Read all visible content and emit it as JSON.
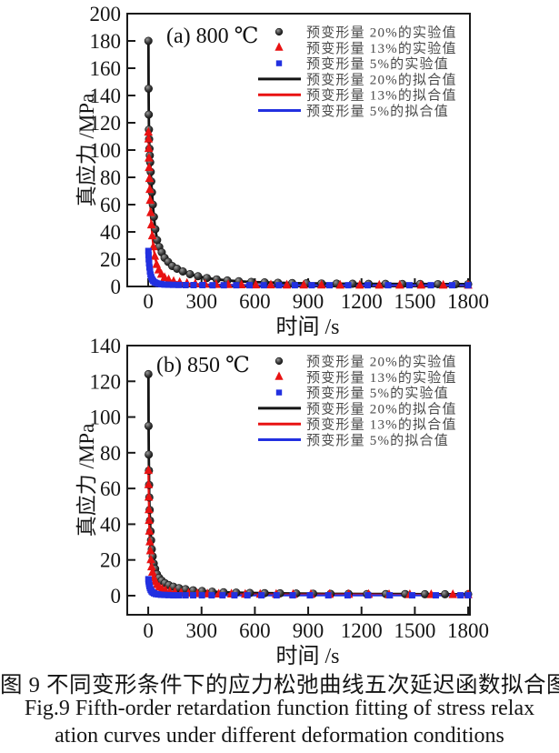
{
  "figure": {
    "caption_cn": "图 9  不同变形条件下的应力松弛曲线五次延迟函数拟合图",
    "caption_en_line1": "Fig.9  Fifth-order retardation function fitting of stress relax",
    "caption_en_line2": "ation curves under different deformation conditions"
  },
  "colors": {
    "axis": "#1a1a1a",
    "black_series": "#141414",
    "red_series": "#e81212",
    "blue_series": "#2230e0",
    "gray_marker": "#3a3a3a",
    "legend_text": "#4a4a4a"
  },
  "chart_data": [
    {
      "type": "line",
      "title": "(a) 800 ℃",
      "xlabel": "时间 /s",
      "ylabel": "真应力 /MPa",
      "xlim": [
        -118,
        1810
      ],
      "ylim": [
        0,
        200
      ],
      "xticks": [
        0,
        300,
        600,
        900,
        1200,
        1500,
        1800
      ],
      "yticks": [
        0,
        20,
        40,
        60,
        80,
        100,
        120,
        140,
        160,
        180,
        200
      ],
      "grid": false,
      "legend_position": "upper-right-inside",
      "series": [
        {
          "name": "预变形量 20%的实验值",
          "kind": "scatter",
          "marker": "circle",
          "color": "#2f2f2f",
          "points": [
            [
              1,
              180
            ],
            [
              2,
              145
            ],
            [
              3,
              126
            ],
            [
              4,
              115
            ],
            [
              5,
              108
            ],
            [
              7,
              101
            ],
            [
              9,
              96
            ],
            [
              11,
              91
            ],
            [
              14,
              84
            ],
            [
              17,
              77
            ],
            [
              21,
              69
            ],
            [
              26,
              60
            ],
            [
              32,
              51
            ],
            [
              40,
              42
            ],
            [
              50,
              34
            ],
            [
              62,
              29
            ],
            [
              76,
              25
            ],
            [
              92,
              21
            ],
            [
              112,
              18
            ],
            [
              135,
              15
            ],
            [
              162,
              13
            ],
            [
              195,
              11
            ],
            [
              235,
              9
            ],
            [
              280,
              7.5
            ],
            [
              330,
              6.2
            ],
            [
              385,
              5.2
            ],
            [
              445,
              4.4
            ],
            [
              510,
              3.8
            ],
            [
              580,
              3.3
            ],
            [
              655,
              3
            ],
            [
              730,
              2.7
            ],
            [
              810,
              2.5
            ],
            [
              890,
              2.3
            ],
            [
              975,
              2.2
            ],
            [
              1060,
              2.1
            ],
            [
              1150,
              2
            ],
            [
              1240,
              1.9
            ],
            [
              1335,
              1.9
            ],
            [
              1430,
              1.8
            ],
            [
              1530,
              1.8
            ],
            [
              1630,
              1.7
            ],
            [
              1730,
              1.7
            ],
            [
              1800,
              1.7
            ]
          ]
        },
        {
          "name": "预变形量 13%的实验值",
          "kind": "scatter",
          "marker": "triangle",
          "color": "#e81212",
          "points": [
            [
              1,
              113
            ],
            [
              2,
              108
            ],
            [
              3,
              101
            ],
            [
              4,
              94
            ],
            [
              5,
              87
            ],
            [
              7,
              79
            ],
            [
              9,
              71
            ],
            [
              11,
              63
            ],
            [
              14,
              54
            ],
            [
              18,
              45
            ],
            [
              23,
              37
            ],
            [
              29,
              29
            ],
            [
              37,
              22
            ],
            [
              47,
              16
            ],
            [
              59,
              12
            ],
            [
              74,
              8.8
            ],
            [
              92,
              6.4
            ],
            [
              115,
              4.8
            ],
            [
              143,
              3.6
            ],
            [
              177,
              2.8
            ],
            [
              218,
              2.2
            ],
            [
              265,
              1.8
            ],
            [
              320,
              1.5
            ],
            [
              382,
              1.3
            ],
            [
              450,
              1.2
            ],
            [
              525,
              1.1
            ],
            [
              605,
              1
            ],
            [
              690,
              1
            ],
            [
              780,
              0.9
            ],
            [
              875,
              0.9
            ],
            [
              975,
              0.9
            ],
            [
              1080,
              0.8
            ],
            [
              1190,
              0.8
            ],
            [
              1300,
              0.8
            ],
            [
              1415,
              0.8
            ],
            [
              1535,
              0.8
            ],
            [
              1660,
              0.8
            ],
            [
              1800,
              0.8
            ]
          ]
        },
        {
          "name": "预变形量 5%的实验值",
          "kind": "scatter",
          "marker": "square",
          "color": "#2230e0",
          "points": [
            [
              1,
              26
            ],
            [
              2,
              23
            ],
            [
              3,
              20
            ],
            [
              5,
              17
            ],
            [
              7,
              14
            ],
            [
              10,
              11
            ],
            [
              13,
              8.7
            ],
            [
              17,
              6.8
            ],
            [
              22,
              5.2
            ],
            [
              28,
              4
            ],
            [
              36,
              3.1
            ],
            [
              46,
              2.5
            ],
            [
              58,
              2
            ],
            [
              73,
              1.7
            ],
            [
              91,
              1.4
            ],
            [
              113,
              1.3
            ],
            [
              140,
              1.2
            ],
            [
              172,
              1.1
            ],
            [
              210,
              1
            ],
            [
              255,
              1
            ],
            [
              305,
              1
            ],
            [
              362,
              0.9
            ],
            [
              425,
              0.9
            ],
            [
              495,
              0.9
            ],
            [
              570,
              0.9
            ],
            [
              650,
              0.9
            ],
            [
              735,
              0.9
            ],
            [
              825,
              0.9
            ],
            [
              920,
              0.9
            ],
            [
              1020,
              0.9
            ],
            [
              1125,
              0.9
            ],
            [
              1235,
              0.9
            ],
            [
              1350,
              0.9
            ],
            [
              1470,
              0.9
            ],
            [
              1590,
              0.9
            ],
            [
              1710,
              0.9
            ],
            [
              1800,
              0.9
            ]
          ]
        },
        {
          "name": "预变形量 20%的拟合值",
          "kind": "line",
          "color": "#141414",
          "points_from": 0
        },
        {
          "name": "预变形量 13%的拟合值",
          "kind": "line",
          "color": "#e81212",
          "points_from": 1
        },
        {
          "name": "预变形量 5%的拟合值",
          "kind": "line",
          "color": "#2230e0",
          "points_from": 2
        }
      ]
    },
    {
      "type": "line",
      "title": "(b) 850 ℃",
      "xlabel": "时间 /s",
      "ylabel": "真应力 /MPa",
      "xlim": [
        -118,
        1810
      ],
      "ylim": [
        -10.7,
        140
      ],
      "xticks": [
        0,
        300,
        600,
        900,
        1200,
        1500,
        1800
      ],
      "yticks": [
        0,
        20,
        40,
        60,
        80,
        100,
        120,
        140
      ],
      "grid": false,
      "legend_position": "upper-right-inside",
      "series": [
        {
          "name": "预变形量 20%的实验值",
          "kind": "scatter",
          "marker": "circle",
          "color": "#2f2f2f",
          "points": [
            [
              1,
              124
            ],
            [
              2,
              95
            ],
            [
              3,
              79
            ],
            [
              4,
              70
            ],
            [
              5,
              62
            ],
            [
              6,
              55
            ],
            [
              8,
              48
            ],
            [
              10,
              42
            ],
            [
              13,
              36
            ],
            [
              16,
              31
            ],
            [
              20,
              26
            ],
            [
              25,
              22
            ],
            [
              31,
              18
            ],
            [
              39,
              15
            ],
            [
              49,
              12
            ],
            [
              61,
              10
            ],
            [
              76,
              8.4
            ],
            [
              94,
              7
            ],
            [
              116,
              5.9
            ],
            [
              142,
              5
            ],
            [
              173,
              4.2
            ],
            [
              210,
              3.6
            ],
            [
              253,
              3
            ],
            [
              303,
              2.6
            ],
            [
              360,
              2.2
            ],
            [
              424,
              1.9
            ],
            [
              495,
              1.7
            ],
            [
              572,
              1.5
            ],
            [
              655,
              1.4
            ],
            [
              742,
              1.3
            ],
            [
              833,
              1.2
            ],
            [
              928,
              1.1
            ],
            [
              1026,
              1
            ],
            [
              1127,
              1
            ],
            [
              1231,
              0.9
            ],
            [
              1337,
              0.9
            ],
            [
              1446,
              0.9
            ],
            [
              1557,
              0.8
            ],
            [
              1670,
              0.8
            ],
            [
              1800,
              0.8
            ]
          ]
        },
        {
          "name": "预变形量 13%的实验值",
          "kind": "scatter",
          "marker": "triangle",
          "color": "#e81212",
          "points": [
            [
              1,
              70
            ],
            [
              2,
              62
            ],
            [
              3,
              55
            ],
            [
              4,
              48
            ],
            [
              5,
              42
            ],
            [
              7,
              36
            ],
            [
              9,
              30
            ],
            [
              12,
              25
            ],
            [
              15,
              20
            ],
            [
              19,
              16
            ],
            [
              24,
              13
            ],
            [
              31,
              10
            ],
            [
              39,
              7.9
            ],
            [
              49,
              6.1
            ],
            [
              62,
              4.7
            ],
            [
              78,
              3.6
            ],
            [
              97,
              2.8
            ],
            [
              121,
              2.2
            ],
            [
              150,
              1.8
            ],
            [
              185,
              1.4
            ],
            [
              227,
              1.2
            ],
            [
              276,
              1
            ],
            [
              333,
              0.9
            ],
            [
              397,
              0.8
            ],
            [
              468,
              0.8
            ],
            [
              546,
              0.7
            ],
            [
              630,
              0.7
            ],
            [
              720,
              0.7
            ],
            [
              815,
              0.6
            ],
            [
              915,
              0.6
            ],
            [
              1020,
              0.6
            ],
            [
              1128,
              0.6
            ],
            [
              1240,
              0.6
            ],
            [
              1355,
              0.5
            ],
            [
              1472,
              0.5
            ],
            [
              1592,
              0.5
            ],
            [
              1714,
              0.5
            ],
            [
              1800,
              0.5
            ]
          ]
        },
        {
          "name": "预变形量 5%的实验值",
          "kind": "scatter",
          "marker": "square",
          "color": "#2230e0",
          "points": [
            [
              1,
              9.2
            ],
            [
              2,
              8.5
            ],
            [
              3,
              7.6
            ],
            [
              5,
              6.4
            ],
            [
              7,
              5.3
            ],
            [
              10,
              4.2
            ],
            [
              14,
              3.2
            ],
            [
              19,
              2.4
            ],
            [
              25,
              1.8
            ],
            [
              33,
              1.3
            ],
            [
              43,
              0.9
            ],
            [
              56,
              0.7
            ],
            [
              72,
              0.5
            ],
            [
              91,
              0.4
            ],
            [
              114,
              0.3
            ],
            [
              141,
              0.2
            ],
            [
              173,
              0.2
            ],
            [
              210,
              0.2
            ],
            [
              253,
              0.2
            ],
            [
              302,
              0.2
            ],
            [
              357,
              0.2
            ],
            [
              418,
              0.2
            ],
            [
              485,
              0.2
            ],
            [
              558,
              0.2
            ],
            [
              637,
              0.2
            ],
            [
              722,
              0.2
            ],
            [
              813,
              0.2
            ],
            [
              910,
              0.2
            ],
            [
              1013,
              0.2
            ],
            [
              1122,
              0.2
            ],
            [
              1237,
              0.2
            ],
            [
              1358,
              0.2
            ],
            [
              1485,
              0.2
            ],
            [
              1618,
              0.2
            ],
            [
              1757,
              0.2
            ],
            [
              1800,
              0.2
            ]
          ]
        },
        {
          "name": "预变形量 20%的拟合值",
          "kind": "line",
          "color": "#141414",
          "points_from": 0
        },
        {
          "name": "预变形量 13%的拟合值",
          "kind": "line",
          "color": "#e81212",
          "points_from": 1
        },
        {
          "name": "预变形量 5%的拟合值",
          "kind": "line",
          "color": "#2230e0",
          "points_from": 2
        }
      ]
    }
  ]
}
